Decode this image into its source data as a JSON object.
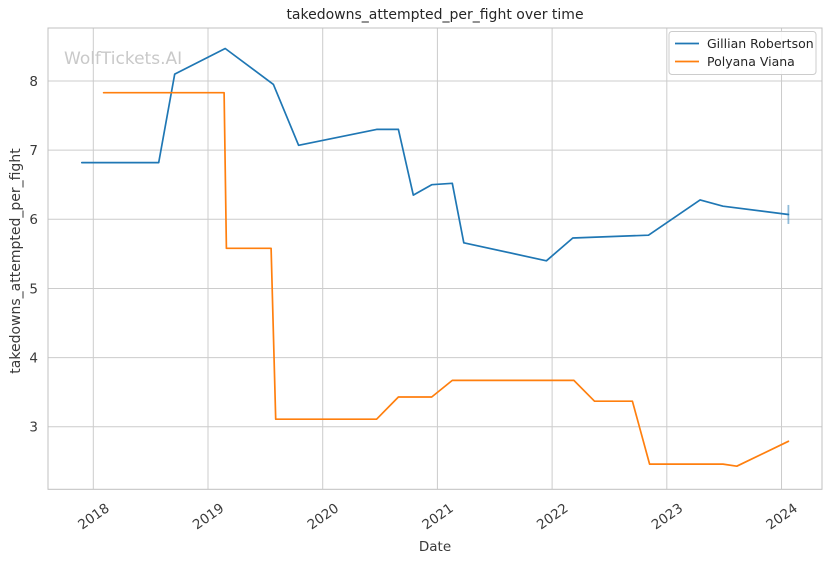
{
  "chart_data": {
    "type": "line",
    "title": "takedowns_attempted_per_fight over time",
    "xlabel": "Date",
    "ylabel": "takedowns_attempted_per_fight",
    "watermark": "WolfTickets.AI",
    "xlim": [
      2017.605,
      2024.353
    ],
    "ylim": [
      2.096,
      8.766
    ],
    "xticks": [
      2018,
      2019,
      2020,
      2021,
      2022,
      2023,
      2024
    ],
    "yticks": [
      3,
      4,
      5,
      6,
      7,
      8
    ],
    "grid": true,
    "legend_position": "upper right",
    "series": [
      {
        "name": "Gillian Robertson",
        "color": "#1f77b4",
        "end_tick_marker": true,
        "x": [
          2017.9,
          2018.57,
          2018.71,
          2019.15,
          2019.57,
          2019.79,
          2020.47,
          2020.66,
          2020.79,
          2020.95,
          2021.13,
          2021.23,
          2021.95,
          2022.18,
          2022.84,
          2023.29,
          2023.49,
          2024.06
        ],
        "y": [
          6.82,
          6.82,
          8.1,
          8.47,
          7.95,
          7.07,
          7.3,
          7.3,
          6.35,
          6.5,
          6.52,
          5.66,
          5.4,
          5.73,
          5.77,
          6.28,
          6.19,
          6.07
        ]
      },
      {
        "name": "Polyana Viana",
        "color": "#ff7f0e",
        "end_tick_marker": false,
        "x": [
          2018.09,
          2019.14,
          2019.16,
          2019.55,
          2019.59,
          2020.47,
          2020.66,
          2020.95,
          2021.13,
          2022.19,
          2022.37,
          2022.7,
          2022.85,
          2023.49,
          2023.61,
          2024.06
        ],
        "y": [
          7.83,
          7.83,
          5.58,
          5.58,
          3.11,
          3.11,
          3.43,
          3.43,
          3.67,
          3.67,
          3.37,
          3.37,
          2.46,
          2.46,
          2.43,
          2.79
        ]
      }
    ]
  },
  "colors": {
    "grid": "#cccccc",
    "plot_border": "#c0c0c0",
    "tick_text": "#3a3a3a",
    "title_text": "#262626",
    "watermark": "#c9c9c9",
    "legend_border": "#cccccc"
  }
}
